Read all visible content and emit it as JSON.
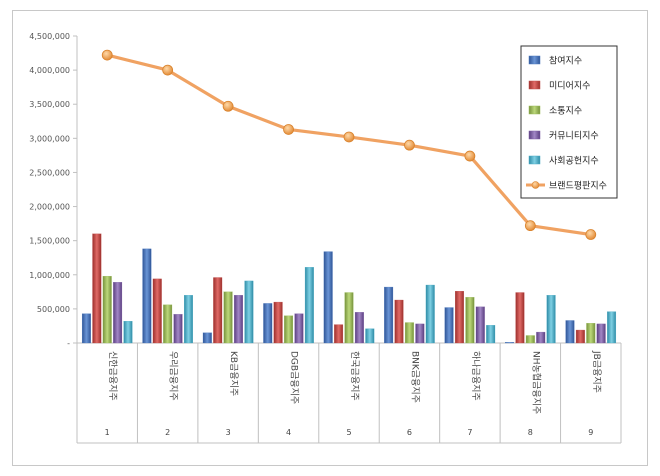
{
  "chart_data": {
    "type": "bar",
    "title": "",
    "xlabel": "",
    "ylabel": "",
    "ylim": [
      0,
      4500000
    ],
    "yticks": [
      0,
      500000,
      1000000,
      1500000,
      2000000,
      2500000,
      3000000,
      3500000,
      4000000,
      4500000
    ],
    "ytick_labels": [
      "-",
      "500,000",
      "1,000,000",
      "1,500,000",
      "2,000,000",
      "2,500,000",
      "3,000,000",
      "3,500,000",
      "4,000,000",
      "4,500,000"
    ],
    "categories": [
      "신한금융지주",
      "우리금융지주",
      "KB금융지주",
      "DGB금융지주",
      "한국금융지주",
      "BNK금융지주",
      "하나금융지주",
      "NH농협금융지주",
      "JB금융지주"
    ],
    "category_numbers": [
      "1",
      "2",
      "3",
      "4",
      "5",
      "6",
      "7",
      "8",
      "9"
    ],
    "grid": false,
    "legend_position": "top-right",
    "series": [
      {
        "name": "참여지수",
        "color": "#4a78bd",
        "values": [
          430000,
          1380000,
          150000,
          580000,
          1340000,
          820000,
          520000,
          10000,
          330000
        ]
      },
      {
        "name": "미디어지수",
        "color": "#c0504d",
        "values": [
          1600000,
          940000,
          960000,
          600000,
          270000,
          630000,
          760000,
          740000,
          190000
        ]
      },
      {
        "name": "소통지수",
        "color": "#9bbb59",
        "values": [
          980000,
          560000,
          750000,
          400000,
          740000,
          300000,
          670000,
          110000,
          290000
        ]
      },
      {
        "name": "커뮤니티지수",
        "color": "#7f5fa6",
        "values": [
          890000,
          420000,
          700000,
          430000,
          450000,
          280000,
          530000,
          160000,
          280000
        ]
      },
      {
        "name": "사회공헌지수",
        "color": "#4bacc6",
        "values": [
          320000,
          700000,
          910000,
          1110000,
          210000,
          850000,
          260000,
          700000,
          460000
        ]
      },
      {
        "name": "브랜드평판지수",
        "type": "line",
        "color": "#f0a262",
        "values": [
          4220000,
          4000000,
          3470000,
          3130000,
          3020000,
          2900000,
          2740000,
          1720000,
          1590000
        ]
      }
    ]
  }
}
